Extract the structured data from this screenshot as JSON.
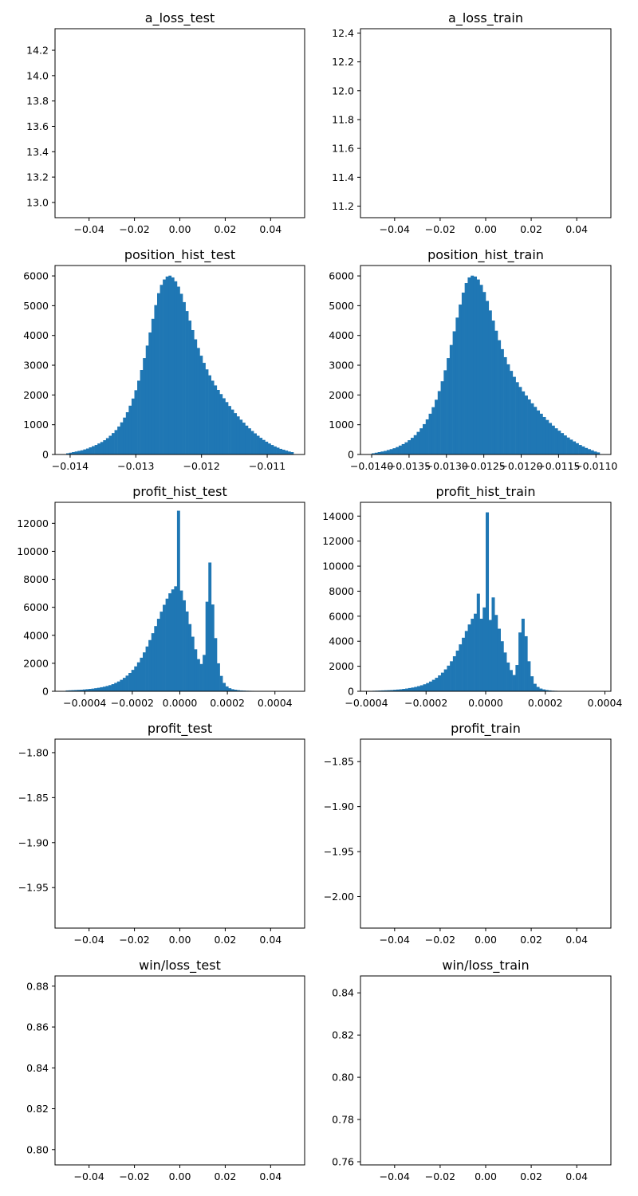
{
  "chart_data": [
    {
      "type": "line",
      "title": "a_loss_test",
      "xlim": [
        -0.055,
        0.055
      ],
      "ylim": [
        12.88,
        14.37
      ],
      "xticks": [
        -0.04,
        -0.02,
        0.0,
        0.02,
        0.04
      ],
      "xtick_labels": [
        "−0.04",
        "−0.02",
        "0.00",
        "0.02",
        "0.04"
      ],
      "yticks": [
        13.0,
        13.2,
        13.4,
        13.6,
        13.8,
        14.0,
        14.2
      ],
      "ytick_labels": [
        "13.0",
        "13.2",
        "13.4",
        "13.6",
        "13.8",
        "14.0",
        "14.2"
      ],
      "series": []
    },
    {
      "type": "line",
      "title": "a_loss_train",
      "xlim": [
        -0.055,
        0.055
      ],
      "ylim": [
        11.12,
        12.43
      ],
      "xticks": [
        -0.04,
        -0.02,
        0.0,
        0.02,
        0.04
      ],
      "xtick_labels": [
        "−0.04",
        "−0.02",
        "0.00",
        "0.02",
        "0.04"
      ],
      "yticks": [
        11.2,
        11.4,
        11.6,
        11.8,
        12.0,
        12.2,
        12.4
      ],
      "ytick_labels": [
        "11.2",
        "11.4",
        "11.6",
        "11.8",
        "12.0",
        "12.2",
        "12.4"
      ],
      "series": []
    },
    {
      "type": "histogram",
      "title": "position_hist_test",
      "xlim": [
        -0.01423,
        -0.01043
      ],
      "ylim": [
        0,
        6350
      ],
      "xticks": [
        -0.014,
        -0.013,
        -0.012,
        -0.011
      ],
      "xtick_labels": [
        "−0.014",
        "−0.013",
        "−0.012",
        "−0.011"
      ],
      "yticks": [
        0,
        1000,
        2000,
        3000,
        4000,
        5000,
        6000
      ],
      "ytick_labels": [
        "0",
        "1000",
        "2000",
        "3000",
        "4000",
        "5000",
        "6000"
      ],
      "bin_start": -0.01406,
      "bin_end": -0.0106,
      "values": [
        40,
        60,
        80,
        100,
        120,
        140,
        170,
        200,
        240,
        280,
        320,
        370,
        420,
        480,
        550,
        630,
        720,
        820,
        940,
        1080,
        1240,
        1420,
        1640,
        1880,
        2160,
        2480,
        2840,
        3240,
        3660,
        4100,
        4560,
        5020,
        5420,
        5700,
        5880,
        5980,
        6010,
        5950,
        5820,
        5640,
        5400,
        5120,
        4820,
        4500,
        4180,
        3870,
        3580,
        3320,
        3080,
        2860,
        2660,
        2480,
        2320,
        2170,
        2030,
        1890,
        1760,
        1630,
        1510,
        1390,
        1280,
        1170,
        1070,
        970,
        880,
        790,
        710,
        630,
        560,
        490,
        430,
        370,
        320,
        270,
        230,
        190,
        160,
        130,
        100,
        80
      ]
    },
    {
      "type": "histogram",
      "title": "position_hist_train",
      "xlim": [
        -0.01415,
        -0.0108
      ],
      "ylim": [
        0,
        6350
      ],
      "xticks": [
        -0.014,
        -0.0135,
        -0.013,
        -0.0125,
        -0.012,
        -0.0115,
        -0.011
      ],
      "xtick_labels": [
        "−0.0140",
        "−0.0135",
        "−0.0130",
        "−0.0125",
        "−0.0120",
        "−0.0115",
        "−0.0110"
      ],
      "yticks": [
        0,
        1000,
        2000,
        3000,
        4000,
        5000,
        6000
      ],
      "ytick_labels": [
        "0",
        "1000",
        "2000",
        "3000",
        "4000",
        "5000",
        "6000"
      ],
      "bin_start": -0.014,
      "bin_end": -0.01095,
      "values": [
        40,
        60,
        80,
        100,
        120,
        150,
        180,
        210,
        250,
        300,
        350,
        410,
        480,
        560,
        650,
        760,
        880,
        1020,
        1180,
        1370,
        1590,
        1840,
        2130,
        2460,
        2830,
        3240,
        3680,
        4140,
        4600,
        5040,
        5440,
        5760,
        5950,
        6010,
        5980,
        5880,
        5700,
        5460,
        5160,
        4840,
        4500,
        4160,
        3840,
        3540,
        3270,
        3030,
        2810,
        2610,
        2430,
        2270,
        2120,
        1980,
        1850,
        1720,
        1600,
        1480,
        1370,
        1260,
        1160,
        1060,
        970,
        880,
        800,
        720,
        640,
        570,
        500,
        440,
        380,
        320,
        270,
        220,
        180,
        140,
        100,
        70
      ]
    },
    {
      "type": "histogram",
      "title": "profit_hist_test",
      "xlim": [
        -0.000525,
        0.000525
      ],
      "ylim": [
        0,
        13500
      ],
      "xticks": [
        -0.0004,
        -0.0002,
        0.0,
        0.0002,
        0.0004
      ],
      "xtick_labels": [
        "−0.0004",
        "−0.0002",
        "0.0000",
        "0.0002",
        "0.0004"
      ],
      "yticks": [
        0,
        2000,
        4000,
        6000,
        8000,
        10000,
        12000
      ],
      "ytick_labels": [
        "0",
        "2000",
        "4000",
        "6000",
        "8000",
        "10000",
        "12000"
      ],
      "bin_start": -0.00048,
      "bin_end": 0.00048,
      "values": [
        60,
        70,
        80,
        90,
        100,
        110,
        130,
        150,
        170,
        190,
        220,
        250,
        290,
        330,
        380,
        440,
        510,
        600,
        700,
        820,
        960,
        1120,
        1310,
        1530,
        1780,
        2070,
        2400,
        2780,
        3200,
        3660,
        4150,
        4660,
        5180,
        5690,
        6180,
        6620,
        7000,
        7280,
        7500,
        12900,
        7200,
        6500,
        5700,
        4800,
        3900,
        3000,
        2300,
        1950,
        2600,
        6400,
        9200,
        6200,
        3800,
        2000,
        1100,
        600,
        350,
        220,
        150,
        110,
        80,
        60,
        50,
        40,
        35,
        30,
        25,
        20,
        18,
        15,
        12,
        10,
        8,
        7,
        6,
        5,
        4,
        3,
        2,
        2
      ]
    },
    {
      "type": "histogram",
      "title": "profit_hist_train",
      "xlim": [
        -0.00042,
        0.00042
      ],
      "ylim": [
        0,
        15100
      ],
      "xticks": [
        -0.0004,
        -0.0002,
        0.0,
        0.0002,
        0.0004
      ],
      "xtick_labels": [
        "−0.0004",
        "−0.0002",
        "0.0000",
        "0.0002",
        "0.0004"
      ],
      "yticks": [
        0,
        2000,
        4000,
        6000,
        8000,
        10000,
        12000,
        14000
      ],
      "ytick_labels": [
        "0",
        "2000",
        "4000",
        "6000",
        "8000",
        "10000",
        "12000",
        "14000"
      ],
      "bin_start": -0.00038,
      "bin_end": 0.00038,
      "values": [
        40,
        50,
        60,
        70,
        80,
        90,
        100,
        120,
        140,
        160,
        190,
        220,
        260,
        300,
        350,
        410,
        480,
        560,
        660,
        780,
        920,
        1080,
        1270,
        1490,
        1750,
        2050,
        2400,
        2800,
        3250,
        3750,
        4280,
        4820,
        5340,
        5800,
        6200,
        7800,
        5800,
        6700,
        14300,
        5700,
        7500,
        6100,
        5000,
        4000,
        3100,
        2300,
        1700,
        1300,
        2100,
        4700,
        5800,
        4400,
        2400,
        1200,
        600,
        350,
        220,
        150,
        100,
        70,
        50,
        40,
        30,
        25,
        20,
        15,
        12,
        10,
        8,
        6,
        5,
        4,
        3,
        2,
        2,
        1
      ]
    },
    {
      "type": "line",
      "title": "profit_test",
      "xlim": [
        -0.055,
        0.055
      ],
      "ylim": [
        -1.995,
        -1.785
      ],
      "xticks": [
        -0.04,
        -0.02,
        0.0,
        0.02,
        0.04
      ],
      "xtick_labels": [
        "−0.04",
        "−0.02",
        "0.00",
        "0.02",
        "0.04"
      ],
      "yticks": [
        -1.95,
        -1.9,
        -1.85,
        -1.8
      ],
      "ytick_labels": [
        "−1.95",
        "−1.90",
        "−1.85",
        "−1.80"
      ],
      "series": []
    },
    {
      "type": "line",
      "title": "profit_train",
      "xlim": [
        -0.055,
        0.055
      ],
      "ylim": [
        -2.035,
        -1.825
      ],
      "xticks": [
        -0.04,
        -0.02,
        0.0,
        0.02,
        0.04
      ],
      "xtick_labels": [
        "−0.04",
        "−0.02",
        "0.00",
        "0.02",
        "0.04"
      ],
      "yticks": [
        -2.0,
        -1.95,
        -1.9,
        -1.85
      ],
      "ytick_labels": [
        "−2.00",
        "−1.95",
        "−1.90",
        "−1.85"
      ],
      "series": []
    },
    {
      "type": "line",
      "title": "win/loss_test",
      "xlim": [
        -0.055,
        0.055
      ],
      "ylim": [
        0.7925,
        0.885
      ],
      "xticks": [
        -0.04,
        -0.02,
        0.0,
        0.02,
        0.04
      ],
      "xtick_labels": [
        "−0.04",
        "−0.02",
        "0.00",
        "0.02",
        "0.04"
      ],
      "yticks": [
        0.8,
        0.82,
        0.84,
        0.86,
        0.88
      ],
      "ytick_labels": [
        "0.80",
        "0.82",
        "0.84",
        "0.86",
        "0.88"
      ],
      "series": []
    },
    {
      "type": "line",
      "title": "win/loss_train",
      "xlim": [
        -0.055,
        0.055
      ],
      "ylim": [
        0.7585,
        0.848
      ],
      "xticks": [
        -0.04,
        -0.02,
        0.0,
        0.02,
        0.04
      ],
      "xtick_labels": [
        "−0.04",
        "−0.02",
        "0.00",
        "0.02",
        "0.04"
      ],
      "yticks": [
        0.76,
        0.78,
        0.8,
        0.82,
        0.84
      ],
      "ytick_labels": [
        "0.76",
        "0.78",
        "0.80",
        "0.82",
        "0.84"
      ],
      "series": []
    }
  ]
}
